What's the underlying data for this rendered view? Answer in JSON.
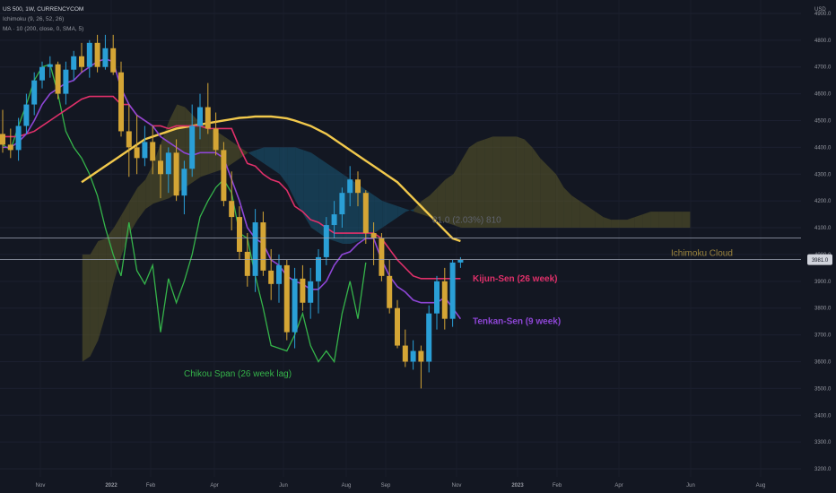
{
  "legend": {
    "symbol": "US 500, 1W, CURRENCYCOM",
    "ichimoku": "Ichimoku (9, 26, 52, 26)",
    "ma": "MA · 10 (200, close, 0, SMA, 5)"
  },
  "axis": {
    "currency": "USD"
  },
  "current_price_label": "3981.0",
  "measure_label": "81.0 (2.03%) 810",
  "annotations": {
    "ichimoku_cloud": "Ichimoku Cloud",
    "kijun": "Kijun-Sen (26 week)",
    "tenkan": "Tenkan-Sen (9 week)",
    "chikou": "Chikou Span (26 week lag)"
  },
  "colors": {
    "background": "#131722",
    "bull": "#2a9fd6",
    "bear": "#d4a535",
    "kijun": "#e0306a",
    "tenkan": "#8e46d6",
    "chikou": "#35b44a",
    "ma": "#f2c94c",
    "cloud_bear": "#1a5a78",
    "cloud_bull": "#5c5a2a"
  },
  "chart_data": {
    "type": "candlestick",
    "y_unit": "USD",
    "ylim": [
      3170,
      4950
    ],
    "y_ticks": [
      3200,
      3300,
      3400,
      3500,
      3600,
      3700,
      3800,
      3900,
      4000,
      4100,
      4200,
      4300,
      4400,
      4500,
      4600,
      4700,
      4800,
      4900
    ],
    "x_ticks": [
      "Nov",
      "2022",
      "Feb",
      "Apr",
      "Jun",
      "Aug",
      "Sep",
      "Nov",
      "2023",
      "Feb",
      "Apr",
      "Jun",
      "Aug"
    ],
    "grid": true,
    "current_price": 3981.0,
    "candles": [
      [
        4450,
        4540,
        4380,
        4410
      ],
      [
        4410,
        4470,
        4360,
        4390
      ],
      [
        4390,
        4510,
        4350,
        4480
      ],
      [
        4480,
        4600,
        4450,
        4560
      ],
      [
        4560,
        4680,
        4520,
        4650
      ],
      [
        4650,
        4720,
        4620,
        4700
      ],
      [
        4700,
        4740,
        4660,
        4710
      ],
      [
        4710,
        4720,
        4580,
        4600
      ],
      [
        4600,
        4720,
        4560,
        4690
      ],
      [
        4690,
        4760,
        4650,
        4740
      ],
      [
        4740,
        4790,
        4680,
        4700
      ],
      [
        4700,
        4800,
        4660,
        4790
      ],
      [
        4790,
        4820,
        4680,
        4700
      ],
      [
        4700,
        4820,
        4690,
        4770
      ],
      [
        4770,
        4820,
        4670,
        4680
      ],
      [
        4680,
        4720,
        4440,
        4460
      ],
      [
        4460,
        4560,
        4290,
        4400
      ],
      [
        4400,
        4520,
        4300,
        4360
      ],
      [
        4360,
        4480,
        4330,
        4420
      ],
      [
        4420,
        4480,
        4300,
        4350
      ],
      [
        4350,
        4410,
        4210,
        4300
      ],
      [
        4300,
        4400,
        4230,
        4380
      ],
      [
        4380,
        4430,
        4200,
        4220
      ],
      [
        4220,
        4350,
        4150,
        4320
      ],
      [
        4320,
        4560,
        4290,
        4480
      ],
      [
        4480,
        4600,
        4430,
        4550
      ],
      [
        4550,
        4640,
        4450,
        4470
      ],
      [
        4470,
        4530,
        4370,
        4390
      ],
      [
        4390,
        4420,
        4180,
        4200
      ],
      [
        4200,
        4310,
        4090,
        4140
      ],
      [
        4140,
        4180,
        3980,
        4010
      ],
      [
        4010,
        4080,
        3880,
        3920
      ],
      [
        3920,
        4170,
        3860,
        4120
      ],
      [
        4120,
        4160,
        3920,
        3940
      ],
      [
        3940,
        4020,
        3830,
        3890
      ],
      [
        3890,
        4000,
        3820,
        3960
      ],
      [
        3960,
        3980,
        3680,
        3710
      ],
      [
        3710,
        3950,
        3650,
        3910
      ],
      [
        3910,
        3960,
        3790,
        3820
      ],
      [
        3820,
        3950,
        3760,
        3900
      ],
      [
        3900,
        4020,
        3780,
        3990
      ],
      [
        3990,
        4140,
        3960,
        4110
      ],
      [
        4110,
        4200,
        4060,
        4150
      ],
      [
        4150,
        4250,
        4100,
        4230
      ],
      [
        4230,
        4330,
        4180,
        4280
      ],
      [
        4280,
        4310,
        4180,
        4230
      ],
      [
        4230,
        4240,
        4040,
        4080
      ],
      [
        4080,
        4120,
        3960,
        4060
      ],
      [
        4060,
        4080,
        3900,
        3920
      ],
      [
        3920,
        3980,
        3780,
        3800
      ],
      [
        3800,
        3830,
        3650,
        3660
      ],
      [
        3660,
        3720,
        3580,
        3600
      ],
      [
        3600,
        3680,
        3570,
        3640
      ],
      [
        3640,
        3660,
        3500,
        3600
      ],
      [
        3600,
        3810,
        3560,
        3780
      ],
      [
        3780,
        3920,
        3720,
        3900
      ],
      [
        3900,
        3950,
        3720,
        3760
      ],
      [
        3760,
        3980,
        3730,
        3970
      ],
      [
        3970,
        3990,
        3950,
        3981
      ]
    ],
    "x_positions_weeks_from_start": "index order",
    "kijun_sen": [
      4440,
      4440,
      4440,
      4450,
      4460,
      4480,
      4500,
      4520,
      4540,
      4560,
      4580,
      4590,
      4590,
      4590,
      4590,
      4560,
      4560,
      4520,
      4500,
      4480,
      4480,
      4470,
      4480,
      4480,
      4480,
      4480,
      4470,
      4470,
      4470,
      4470,
      4400,
      4340,
      4330,
      4300,
      4280,
      4270,
      4240,
      4180,
      4160,
      4130,
      4120,
      4100,
      4080,
      4080,
      4080,
      4080,
      4080,
      4080,
      4060,
      4020,
      3980,
      3950,
      3920,
      3910,
      3910,
      3910,
      3910,
      3910,
      3910
    ],
    "tenkan_sen": [
      4400,
      4400,
      4420,
      4450,
      4500,
      4560,
      4600,
      4620,
      4640,
      4650,
      4680,
      4700,
      4720,
      4730,
      4720,
      4620,
      4560,
      4520,
      4500,
      4480,
      4440,
      4420,
      4400,
      4380,
      4370,
      4380,
      4380,
      4380,
      4360,
      4280,
      4200,
      4100,
      4060,
      4040,
      3980,
      3960,
      3920,
      3900,
      3890,
      3870,
      3870,
      3900,
      3960,
      4000,
      4010,
      4040,
      4060,
      4060,
      3980,
      3920,
      3880,
      3860,
      3830,
      3820,
      3820,
      3820,
      3840,
      3800,
      3760
    ],
    "ma_200": [
      4270,
      4290,
      4310,
      4330,
      4350,
      4370,
      4390,
      4410,
      4430,
      4440,
      4450,
      4460,
      4470,
      4475,
      4480,
      4485,
      4490,
      4495,
      4500,
      4505,
      4510,
      4512,
      4515,
      4515,
      4515,
      4512,
      4508,
      4500,
      4490,
      4480,
      4465,
      4450,
      4430,
      4410,
      4390,
      4370,
      4350,
      4330,
      4310,
      4290,
      4270,
      4240,
      4210,
      4180,
      4150,
      4120,
      4090,
      4060,
      4050
    ],
    "chikou_span": [
      4410,
      4390,
      4480,
      4560,
      4650,
      4700,
      4710,
      4600,
      4460,
      4400,
      4360,
      4300,
      4220,
      4100,
      4000,
      3920,
      4120,
      3940,
      3890,
      3960,
      3710,
      3910,
      3820,
      3900,
      4000,
      4140,
      4200,
      4250,
      4280,
      4230,
      4080,
      4060,
      3920,
      3800,
      3660,
      3650,
      3640,
      3700,
      3780,
      3660,
      3600,
      3640,
      3600,
      3780,
      3900,
      3760,
      3970
    ],
    "cloud": {
      "start_index": 26,
      "span_a": [
        4000,
        4000,
        4050,
        4060,
        4100,
        4150,
        4200,
        4250,
        4280,
        4340,
        4420,
        4500,
        4560,
        4550,
        4520,
        4490,
        4470,
        4460,
        4440,
        4420,
        4400,
        4380,
        4360,
        4340,
        4320,
        4300,
        4260,
        4200,
        4150,
        4100,
        4080,
        4060,
        4050,
        4040,
        4040,
        4050,
        4060,
        4080,
        4100,
        4120,
        4140,
        4160,
        4170,
        4200,
        4220,
        4250,
        4280,
        4300,
        4350,
        4400,
        4420,
        4430,
        4440,
        4440,
        4440,
        4440,
        4430,
        4400,
        4360,
        4330,
        4300,
        4250,
        4220,
        4200,
        4180,
        4160,
        4140,
        4130,
        4130,
        4130,
        4140,
        4150,
        4160,
        4160,
        4160,
        4160,
        4160,
        4160
      ],
      "span_b": [
        3600,
        3620,
        3680,
        3780,
        3900,
        4000,
        4080,
        4130,
        4170,
        4190,
        4200,
        4210,
        4230,
        4250,
        4270,
        4290,
        4300,
        4310,
        4320,
        4340,
        4360,
        4380,
        4390,
        4400,
        4400,
        4400,
        4400,
        4400,
        4390,
        4380,
        4360,
        4340,
        4320,
        4300,
        4280,
        4260,
        4240,
        4220,
        4200,
        4190,
        4180,
        4170,
        4160,
        4150,
        4140,
        4130,
        4120,
        4110,
        4100,
        4100,
        4100,
        4100,
        4100,
        4100,
        4100,
        4100,
        4100,
        4100,
        4100,
        4100,
        4100,
        4100,
        4100,
        4100,
        4100,
        4100,
        4100,
        4100,
        4100,
        4100,
        4100,
        4100,
        4100,
        4100,
        4100,
        4100,
        4100,
        4100
      ]
    }
  }
}
